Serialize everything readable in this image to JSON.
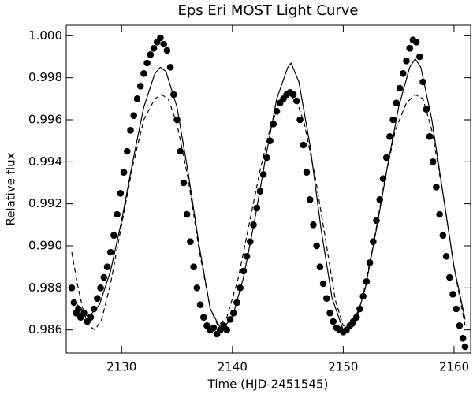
{
  "chart_data": {
    "type": "scatter",
    "title": "Eps Eri MOST Light Curve",
    "xlabel": "Time (HJD-2451545)",
    "ylabel": "Relative flux",
    "xlim": [
      2125,
      2161.5
    ],
    "ylim": [
      0.9849,
      1.0005
    ],
    "xticks": [
      2130,
      2140,
      2150,
      2160
    ],
    "yticks": [
      0.986,
      0.988,
      {
        "value": 0.99,
        "label": "0.990"
      },
      0.992,
      0.994,
      0.996,
      0.998,
      {
        "value": 1.0,
        "label": "1.000"
      }
    ],
    "series": [
      {
        "style": "dots",
        "color": "#000000",
        "x": [
          2125.5,
          2125.7,
          2125.9,
          2126.1,
          2126.3,
          2126.6,
          2126.9,
          2127.2,
          2127.5,
          2127.8,
          2128.1,
          2128.4,
          2128.7,
          2129.0,
          2129.3,
          2129.6,
          2129.9,
          2130.2,
          2130.5,
          2130.8,
          2131.1,
          2131.4,
          2131.7,
          2132.0,
          2132.3,
          2132.6,
          2132.9,
          2133.2,
          2133.5,
          2133.8,
          2134.1,
          2134.4,
          2134.7,
          2135.0,
          2135.3,
          2135.6,
          2135.9,
          2136.2,
          2136.5,
          2136.8,
          2137.1,
          2137.4,
          2137.7,
          2138.0,
          2138.3,
          2138.6,
          2138.9,
          2139.2,
          2139.5,
          2139.8,
          2140.1,
          2140.4,
          2140.7,
          2141.0,
          2141.3,
          2141.6,
          2141.9,
          2142.2,
          2142.5,
          2142.8,
          2143.1,
          2143.4,
          2143.7,
          2144.0,
          2144.3,
          2144.6,
          2144.9,
          2145.2,
          2145.5,
          2145.8,
          2146.1,
          2146.4,
          2146.7,
          2147.0,
          2147.3,
          2147.6,
          2147.9,
          2148.2,
          2148.5,
          2148.8,
          2149.1,
          2149.4,
          2149.7,
          2150.0,
          2150.3,
          2150.6,
          2150.9,
          2151.2,
          2151.5,
          2151.8,
          2152.1,
          2152.4,
          2152.7,
          2153.0,
          2153.3,
          2153.6,
          2153.9,
          2154.2,
          2154.5,
          2154.8,
          2155.1,
          2155.4,
          2155.7,
          2156.0,
          2156.3,
          2156.6,
          2156.9,
          2157.2,
          2157.5,
          2157.8,
          2158.1,
          2158.4,
          2158.7,
          2159.0,
          2159.3,
          2159.6,
          2159.9,
          2160.2,
          2160.5,
          2160.8,
          2161.0
        ],
        "values": [
          0.988,
          0.9873,
          0.9868,
          0.987,
          0.9866,
          0.9868,
          0.9864,
          0.9866,
          0.987,
          0.9875,
          0.988,
          0.9885,
          0.989,
          0.9897,
          0.9905,
          0.9915,
          0.9925,
          0.9935,
          0.9945,
          0.9955,
          0.9962,
          0.997,
          0.9976,
          0.9982,
          0.9987,
          0.9991,
          0.9994,
          0.9997,
          0.9999,
          0.9996,
          0.9993,
          0.9985,
          0.9972,
          0.996,
          0.9945,
          0.993,
          0.9915,
          0.9902,
          0.989,
          0.988,
          0.9872,
          0.9866,
          0.9862,
          0.986,
          0.9861,
          0.9858,
          0.986,
          0.9862,
          0.986,
          0.9865,
          0.9868,
          0.9873,
          0.988,
          0.9888,
          0.9895,
          0.9902,
          0.991,
          0.9918,
          0.9926,
          0.9934,
          0.9942,
          0.995,
          0.9958,
          0.9964,
          0.9968,
          0.997,
          0.9972,
          0.9973,
          0.9972,
          0.9969,
          0.996,
          0.9948,
          0.9935,
          0.9922,
          0.991,
          0.99,
          0.989,
          0.9882,
          0.9875,
          0.9868,
          0.9864,
          0.9861,
          0.986,
          0.9859,
          0.986,
          0.9862,
          0.9864,
          0.9866,
          0.987,
          0.9876,
          0.9883,
          0.9892,
          0.9902,
          0.9912,
          0.9922,
          0.9932,
          0.9942,
          0.9952,
          0.996,
          0.9968,
          0.9975,
          0.9982,
          0.9988,
          0.9994,
          0.9998,
          0.9997,
          0.999,
          0.9978,
          0.9965,
          0.9952,
          0.994,
          0.9928,
          0.9915,
          0.9905,
          0.9895,
          0.9885,
          0.9877,
          0.987,
          0.9862,
          0.9856,
          0.9852
        ]
      },
      {
        "style": "solid",
        "color": "#000000",
        "x": [
          2126,
          2127,
          2128,
          2129,
          2130,
          2131,
          2132,
          2133,
          2133.5,
          2134,
          2135,
          2136,
          2137,
          2138,
          2139,
          2140,
          2141,
          2142,
          2143,
          2144,
          2145,
          2145.3,
          2146,
          2147,
          2148,
          2149,
          2150,
          2151,
          2152,
          2153,
          2154,
          2155,
          2156,
          2156.5,
          2157,
          2158,
          2159,
          2160,
          2161
        ],
        "values": [
          0.9872,
          0.9866,
          0.9872,
          0.9888,
          0.9912,
          0.994,
          0.9966,
          0.9982,
          0.9985,
          0.9983,
          0.9966,
          0.9935,
          0.99,
          0.987,
          0.986,
          0.9866,
          0.9885,
          0.9912,
          0.9942,
          0.997,
          0.9985,
          0.9987,
          0.9978,
          0.9948,
          0.9908,
          0.9875,
          0.986,
          0.9862,
          0.988,
          0.9908,
          0.9938,
          0.9966,
          0.9985,
          0.9989,
          0.9985,
          0.996,
          0.9925,
          0.989,
          0.9865
        ]
      },
      {
        "style": "dashed",
        "color": "#000000",
        "x": [
          2125.5,
          2126,
          2126.5,
          2127,
          2127.6,
          2128.2,
          2129,
          2130,
          2131,
          2132,
          2133,
          2133.6,
          2134.2,
          2135,
          2136,
          2137,
          2138,
          2138.7,
          2139.5,
          2140.5,
          2141.5,
          2142.5,
          2143.5,
          2144.5,
          2145.1,
          2145.8,
          2146.5,
          2147.5,
          2148.5,
          2149.3,
          2150,
          2150.8,
          2151.7,
          2152.7,
          2153.7,
          2154.7,
          2155.7,
          2156.5,
          2157.2,
          2158,
          2159,
          2160,
          2161
        ],
        "values": [
          0.9897,
          0.9882,
          0.987,
          0.9862,
          0.986,
          0.9865,
          0.9882,
          0.991,
          0.9938,
          0.996,
          0.997,
          0.9972,
          0.997,
          0.9958,
          0.9932,
          0.9898,
          0.987,
          0.9862,
          0.9866,
          0.9884,
          0.991,
          0.9936,
          0.9958,
          0.997,
          0.9972,
          0.9969,
          0.9958,
          0.9932,
          0.99,
          0.9874,
          0.9862,
          0.9862,
          0.9874,
          0.99,
          0.993,
          0.9955,
          0.9968,
          0.9972,
          0.997,
          0.9955,
          0.9925,
          0.989,
          0.9862
        ]
      }
    ]
  }
}
